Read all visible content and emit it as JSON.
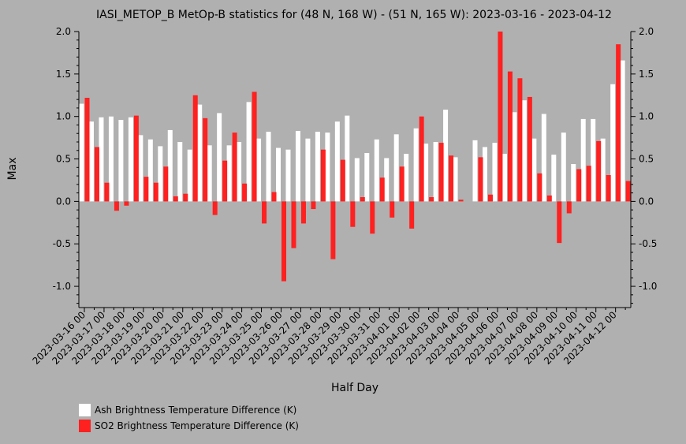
{
  "chart_data": {
    "type": "bar",
    "title": "IASI_METOP_B MetOp-B statistics for (48 N, 168 W) - (51 N, 165 W): 2023-03-16 - 2023-04-12",
    "xlabel": "Half Day",
    "ylabel": "Max",
    "ylim": [
      -1.25,
      2.0
    ],
    "yticks": [
      "-1.0",
      "-0.5",
      "0.0",
      "0.5",
      "1.0",
      "1.5",
      "2.0"
    ],
    "yticks_right": [
      "-1.0",
      "-0.5",
      "0.0",
      "0.5",
      "1.0",
      "1.5",
      "2.0"
    ],
    "grid": false,
    "legend_position": "bottom-left",
    "x": [
      0,
      0.5,
      1,
      1.5,
      2,
      2.5,
      3,
      3.5,
      4,
      4.5,
      5,
      5.5,
      6,
      6.5,
      7,
      7.5,
      8,
      8.5,
      9,
      9.5,
      10,
      10.5,
      11,
      11.5,
      12,
      12.5,
      13,
      13.5,
      14,
      14.5,
      15,
      15.5,
      16,
      16.5,
      17,
      17.5,
      18,
      18.5,
      19,
      19.5,
      20,
      20.5,
      21,
      21.5,
      22,
      22.5,
      23,
      23.5,
      24,
      24.5,
      25,
      25.5,
      26,
      26.5,
      27,
      27.5
    ],
    "xtick_positions": [
      0,
      1,
      2,
      3,
      4,
      5,
      6,
      7,
      8,
      9,
      10,
      11,
      12,
      13,
      14,
      15,
      16,
      17,
      18,
      19,
      20,
      21,
      22,
      23,
      24,
      25,
      26,
      27
    ],
    "xtick_labels": [
      "2023-03-16 00",
      "2023-03-17 00",
      "2023-03-18 00",
      "2023-03-19 00",
      "2023-03-20 00",
      "2023-03-21 00",
      "2023-03-22 00",
      "2023-03-23 00",
      "2023-03-24 00",
      "2023-03-25 00",
      "2023-03-26 00",
      "2023-03-27 00",
      "2023-03-28 00",
      "2023-03-29 00",
      "2023-03-30 00",
      "2023-03-31 00",
      "2023-04-01 00",
      "2023-04-02 00",
      "2023-04-03 00",
      "2023-04-04 00",
      "2023-04-05 00",
      "2023-04-06 00",
      "2023-04-07 00",
      "2023-04-08 00",
      "2023-04-09 00",
      "2023-04-10 00",
      "2023-04-11 00",
      "2023-04-12 00"
    ],
    "series": [
      {
        "name": "Ash Brightness Temperature Difference (K)",
        "color": "#ffffff",
        "values": [
          1.15,
          0.94,
          0.99,
          1.0,
          0.96,
          0.99,
          0.78,
          0.73,
          0.65,
          0.84,
          0.7,
          0.61,
          1.14,
          0.66,
          1.04,
          0.66,
          0.7,
          1.17,
          0.74,
          0.82,
          0.63,
          0.61,
          0.83,
          0.74,
          0.82,
          0.81,
          0.94,
          1.01,
          0.51,
          0.57,
          0.73,
          0.51,
          0.79,
          0.56,
          0.86,
          0.68,
          0.7,
          1.08,
          0.52,
          null,
          0.72,
          0.64,
          0.69,
          0.56,
          1.05,
          1.19,
          0.74,
          1.03,
          0.55,
          0.81,
          0.44,
          0.97,
          0.97,
          0.74,
          1.38,
          1.66
        ]
      },
      {
        "name": "SO2 Brightness Temperature Difference (K)",
        "color": "#ff2020",
        "values": [
          1.22,
          0.64,
          0.22,
          -0.11,
          -0.05,
          1.01,
          0.29,
          0.22,
          0.41,
          0.06,
          0.09,
          1.25,
          0.98,
          -0.16,
          0.48,
          0.81,
          0.21,
          1.29,
          -0.26,
          0.11,
          -0.94,
          -0.55,
          -0.26,
          -0.09,
          0.61,
          -0.68,
          0.49,
          -0.3,
          0.05,
          -0.38,
          0.28,
          -0.19,
          0.41,
          -0.32,
          1.0,
          0.05,
          0.69,
          0.54,
          0.02,
          null,
          0.52,
          0.08,
          2.04,
          1.53,
          1.45,
          1.23,
          0.33,
          0.07,
          -0.49,
          -0.14,
          0.38,
          0.42,
          0.71,
          0.31,
          1.85,
          0.24
        ]
      }
    ]
  }
}
